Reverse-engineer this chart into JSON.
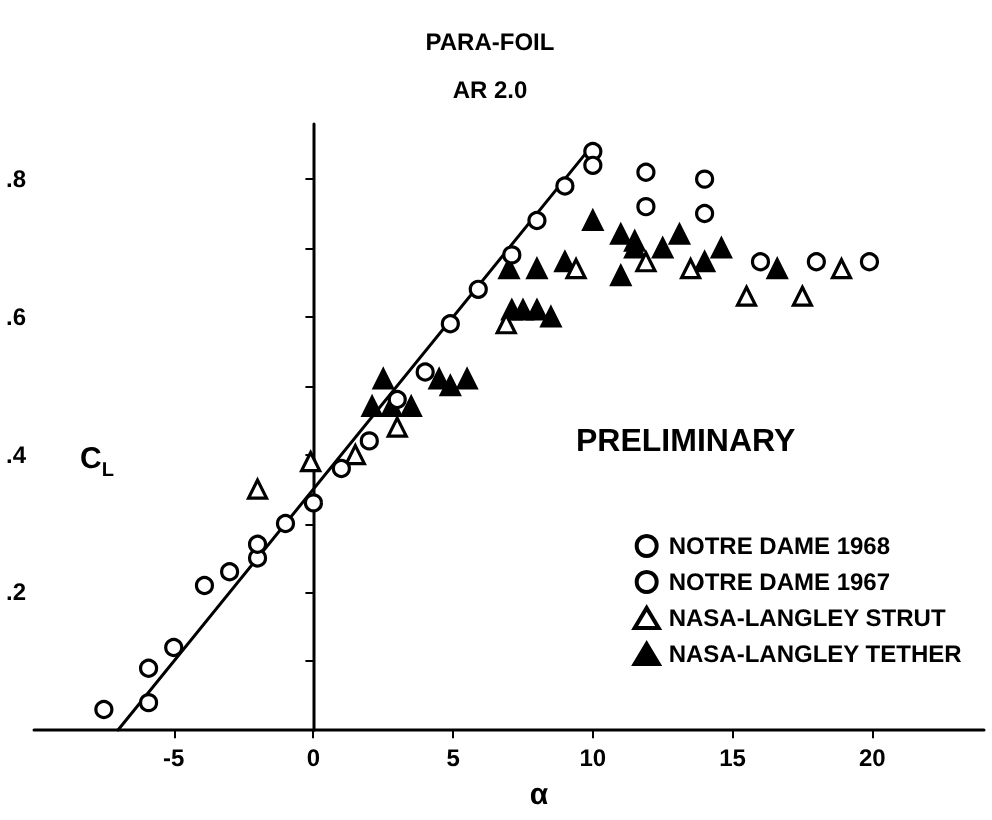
{
  "chart_data": {
    "type": "scatter",
    "title": "PARA-FOIL",
    "subtitle": "AR 2.0",
    "xlabel": "α",
    "ylabel": "C$_{L}$",
    "annotations": [
      "PRELIMINARY"
    ],
    "xlim": [
      -10,
      24
    ],
    "ylim": [
      0,
      0.88
    ],
    "xticks": [
      -5,
      0,
      5,
      10,
      15,
      20
    ],
    "yticks": [
      {
        "value": 0.1,
        "label": null
      },
      {
        "value": 0.2,
        "label": ".2"
      },
      {
        "value": 0.3,
        "label": null
      },
      {
        "value": 0.4,
        "label": ".4"
      },
      {
        "value": 0.5,
        "label": null
      },
      {
        "value": 0.6,
        "label": ".6"
      },
      {
        "value": 0.7,
        "label": null
      },
      {
        "value": 0.8,
        "label": ".8"
      }
    ],
    "legend": "bottom right",
    "series": [
      {
        "name": "NOTRE DAME 1968",
        "color": "#000000",
        "marker": "circle",
        "x": [
          -7.5,
          -5.9,
          -5.9,
          -5.0,
          -3.9,
          -3.0,
          -2.0,
          -2.0,
          -1.0,
          0.0,
          1.0,
          2.0,
          3.0,
          4.0,
          4.9,
          5.9,
          7.1,
          8.0,
          9.0,
          10.0
        ],
        "values": [
          0.03,
          0.04,
          0.09,
          0.12,
          0.21,
          0.23,
          0.25,
          0.27,
          0.3,
          0.33,
          0.38,
          0.42,
          0.48,
          0.52,
          0.59,
          0.64,
          0.69,
          0.74,
          0.79,
          0.82
        ]
      },
      {
        "name": "NOTRE DAME 1967",
        "color": "#000000",
        "marker": "circle",
        "x": [
          10.0,
          11.9,
          11.9,
          14.0,
          14.0,
          16.0,
          18.0,
          19.9
        ],
        "values": [
          0.84,
          0.81,
          0.76,
          0.8,
          0.75,
          0.68,
          0.68,
          0.68
        ]
      },
      {
        "name": "NASA-LANGLEY STRUT",
        "color": "#000000",
        "marker": "triangle",
        "x": [
          -2.0,
          -0.1,
          1.5,
          3.0,
          6.9,
          9.4,
          11.9,
          13.5,
          15.5,
          17.5,
          18.9
        ],
        "values": [
          0.35,
          0.39,
          0.4,
          0.44,
          0.59,
          0.67,
          0.68,
          0.67,
          0.63,
          0.63,
          0.67
        ]
      },
      {
        "name": "NASA-LANGLEY TETHER",
        "color": "#000000",
        "marker": "triangle",
        "x": [
          2.1,
          2.5,
          2.8,
          3.5,
          4.5,
          4.9,
          5.5,
          7.0,
          7.1,
          7.5,
          8.0,
          8.0,
          8.5,
          9.0,
          10.0,
          11.0,
          11.0,
          11.5,
          11.5,
          12.5,
          13.1,
          14.0,
          14.6,
          16.6
        ],
        "values": [
          0.47,
          0.51,
          0.47,
          0.47,
          0.51,
          0.5,
          0.51,
          0.67,
          0.61,
          0.61,
          0.61,
          0.67,
          0.6,
          0.68,
          0.74,
          0.72,
          0.66,
          0.71,
          0.7,
          0.7,
          0.72,
          0.68,
          0.7,
          0.67
        ]
      },
      {
        "type": "line",
        "color": "#000000",
        "marker": "none",
        "line_style": "solid",
        "x": [
          -7,
          10
        ],
        "values": [
          0,
          0.85
        ]
      }
    ]
  }
}
